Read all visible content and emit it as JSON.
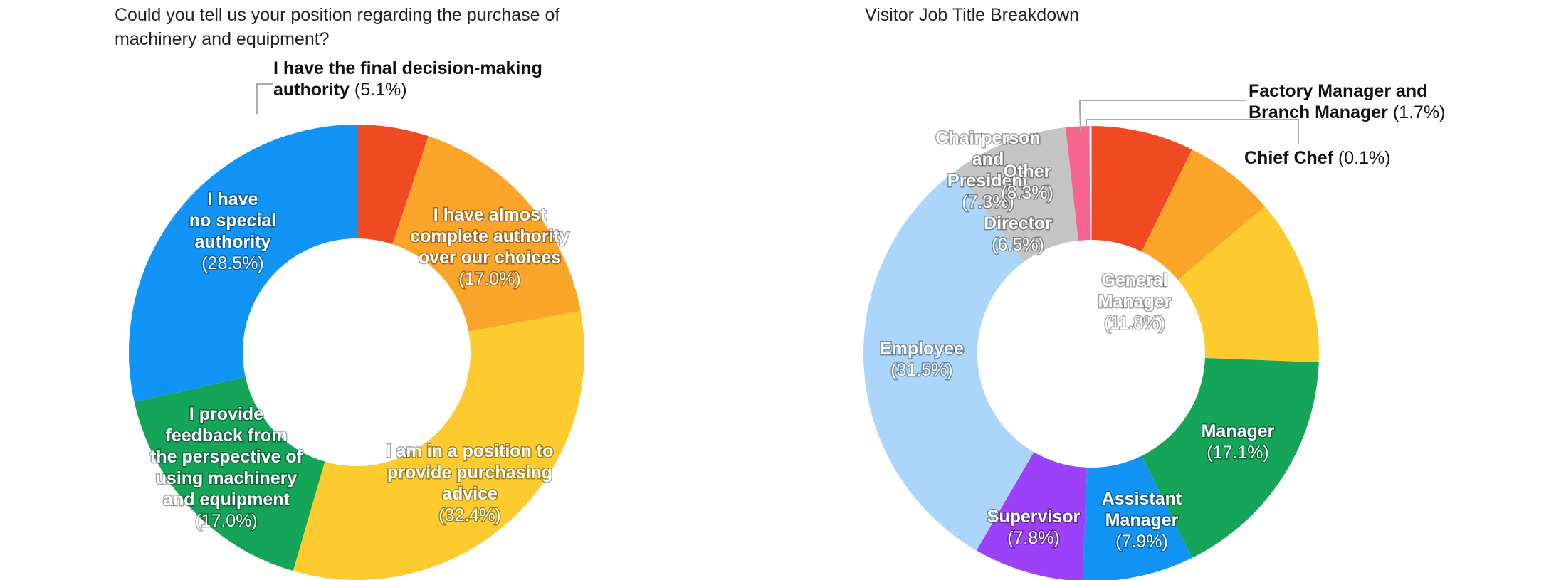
{
  "charts": {
    "left": {
      "title": "Could you tell us your position regarding the purchase of machinery and equipment?"
    },
    "right": {
      "title": "Visitor Job Title Breakdown"
    }
  },
  "chart_data": [
    {
      "type": "pie",
      "variant": "donut",
      "title": "Could you tell us your position regarding the purchase of machinery and equipment?",
      "labels_position": "inside slices, one callout above",
      "slices": [
        {
          "label": "I have the final decision-making authority",
          "value": 5.1,
          "value_text": "(5.1%)",
          "color": "#f04a23"
        },
        {
          "label": "I have almost complete authority over our choices",
          "value": 17.0,
          "value_text": "(17.0%)",
          "color": "#fba42a"
        },
        {
          "label": "I am in a position to provide purchasing advice",
          "value": 32.4,
          "value_text": "(32.4%)",
          "color": "#fecb2f"
        },
        {
          "label": "I provide feedback from the perspective of using machinery and equipment",
          "value": 17.0,
          "value_text": "(17.0%)",
          "color": "#15a558"
        },
        {
          "label": "I have no special authority",
          "value": 28.5,
          "value_text": "(28.5%)",
          "color": "#1294f7"
        }
      ],
      "label_lines": [
        [
          "I have the final decision-making",
          "authority"
        ],
        [
          "I have almost",
          "complete authority",
          "over our choices"
        ],
        [
          "I am in a position to",
          "provide purchasing",
          "advice"
        ],
        [
          "I provide",
          "feedback from",
          "the perspective of",
          "using machinery",
          "and equipment"
        ],
        [
          "I have",
          "no special",
          "authority"
        ]
      ]
    },
    {
      "type": "pie",
      "variant": "donut",
      "title": "Visitor Job Title Breakdown",
      "labels_position": "inside slices, two callouts top-right",
      "slices": [
        {
          "label": "Chairperson and President",
          "value": 7.3,
          "value_text": "(7.3%)",
          "color": "#f04a23"
        },
        {
          "label": "Director",
          "value": 6.5,
          "value_text": "(6.5%)",
          "color": "#fba42a"
        },
        {
          "label": "General Manager",
          "value": 11.8,
          "value_text": "(11.8%)",
          "color": "#fecb2f"
        },
        {
          "label": "Manager",
          "value": 17.1,
          "value_text": "(17.1%)",
          "color": "#15a558"
        },
        {
          "label": "Assistant Manager",
          "value": 7.9,
          "value_text": "(7.9%)",
          "color": "#1294f7"
        },
        {
          "label": "Supervisor",
          "value": 7.8,
          "value_text": "(7.8%)",
          "color": "#9b41f8"
        },
        {
          "label": "Employee",
          "value": 31.5,
          "value_text": "(31.5%)",
          "color": "#abd5fb"
        },
        {
          "label": "Other",
          "value": 8.3,
          "value_text": "(8.3%)",
          "color": "#c4c4c4"
        },
        {
          "label": "Factory Manager and Branch Manager",
          "value": 1.7,
          "value_text": "(1.7%)",
          "color": "#f7658e"
        },
        {
          "label": "Chief Chef",
          "value": 0.1,
          "value_text": "(0.1%)",
          "color": "#ffffff"
        }
      ],
      "label_lines": [
        [
          "Chairperson",
          "and",
          "President"
        ],
        [
          "Director"
        ],
        [
          "General",
          "Manager"
        ],
        [
          "Manager"
        ],
        [
          "Assistant",
          "Manager"
        ],
        [
          "Supervisor"
        ],
        [
          "Employee"
        ],
        [
          "Other"
        ],
        [
          "Factory Manager and",
          "Branch Manager"
        ],
        [
          "Chief Chef"
        ]
      ]
    }
  ]
}
